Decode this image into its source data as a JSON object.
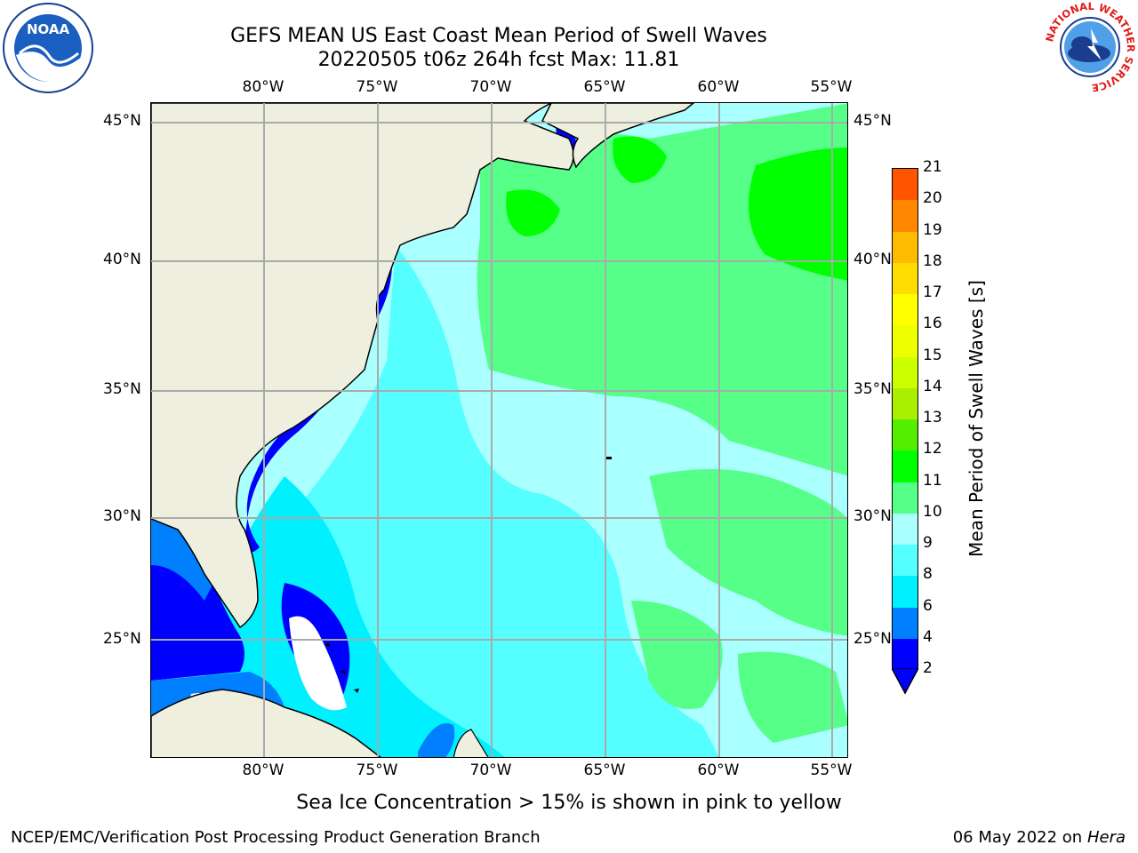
{
  "title": {
    "line1": "GEFS MEAN US East Coast Mean Period of Swell Waves",
    "line2": "20220505 t06z 264h fcst   Max: 11.81"
  },
  "logos": {
    "noara_text": "NOAA",
    "nws_ring": "NATIONAL WEATHER SERVICE"
  },
  "map": {
    "longitude_labels": [
      "80°W",
      "75°W",
      "70°W",
      "65°W",
      "60°W",
      "55°W"
    ],
    "latitude_labels": [
      "45°N",
      "40°N",
      "35°N",
      "30°N",
      "25°N"
    ],
    "lon_range": [
      -84.9,
      -54.3
    ],
    "lat_range": [
      20.5,
      46.0
    ],
    "grid": true
  },
  "colorbar": {
    "label": "Mean Period of Swell Waves [s]",
    "ticks": [
      "2",
      "4",
      "6",
      "8",
      "9",
      "10",
      "11",
      "12",
      "13",
      "14",
      "15",
      "16",
      "17",
      "18",
      "19",
      "20",
      "21"
    ],
    "colors": [
      "#0000ff",
      "#0080ff",
      "#00f0ff",
      "#55ffff",
      "#aaffff",
      "#55ff88",
      "#00ff00",
      "#55ee00",
      "#aaee00",
      "#ccff00",
      "#eeff00",
      "#ffff00",
      "#ffdd00",
      "#ffbb00",
      "#ff8800",
      "#ff5500",
      "#ff2200",
      "#ff0000"
    ],
    "under_color": "#0000ff"
  },
  "footer": {
    "note": "Sea Ice Concentration > 15% is shown in pink to yellow",
    "left": "NCEP/EMC/Verification Post Processing Product Generation Branch",
    "right_prefix": "06 May 2022 on",
    "right_machine": "Hera"
  }
}
